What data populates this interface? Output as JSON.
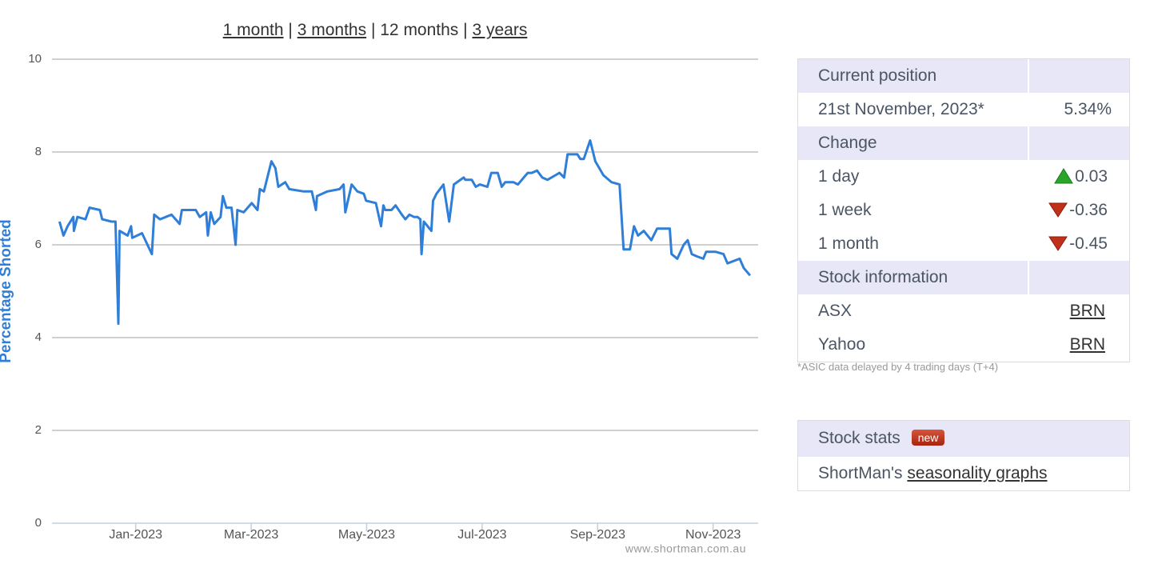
{
  "nav": {
    "links": [
      "1 month",
      "3 months",
      "12 months",
      "3 years"
    ],
    "separator": "|"
  },
  "chart_data": {
    "type": "line",
    "ylabel": "Percentage Shorted",
    "credit": "www.shortman.com.au",
    "x": [
      -0.32,
      -0.25,
      -0.18,
      -0.08,
      -0.07,
      -0.01,
      0.13,
      0.2,
      0.38,
      0.42,
      0.58,
      0.65,
      0.7,
      0.72,
      0.86,
      0.92,
      0.94,
      1.11,
      1.28,
      1.32,
      1.42,
      1.62,
      1.76,
      1.8,
      2.04,
      2.11,
      2.22,
      2.25,
      2.3,
      2.36,
      2.47,
      2.51,
      2.57,
      2.66,
      2.73,
      2.76,
      2.87,
      3.01,
      3.11,
      3.15,
      3.22,
      3.35,
      3.42,
      3.47,
      3.59,
      3.66,
      3.91,
      4.05,
      4.12,
      4.14,
      4.32,
      4.53,
      4.6,
      4.63,
      4.74,
      4.84,
      4.95,
      4.99,
      5.16,
      5.25,
      5.29,
      5.32,
      5.43,
      5.5,
      5.61,
      5.67,
      5.74,
      5.82,
      5.88,
      5.93,
      5.95,
      5.99,
      6.12,
      6.15,
      6.21,
      6.33,
      6.43,
      6.51,
      6.68,
      6.71,
      6.82,
      6.89,
      6.96,
      7.09,
      7.16,
      7.27,
      7.34,
      7.4,
      7.54,
      7.62,
      7.72,
      7.79,
      7.86,
      7.95,
      8.04,
      8.13,
      8.27,
      8.34,
      8.42,
      8.48,
      8.65,
      8.7,
      8.76,
      8.87,
      8.96,
      9.1,
      9.24,
      9.38,
      9.45,
      9.56,
      9.63,
      9.7,
      9.8,
      9.93,
      10.03,
      10.14,
      10.25,
      10.28,
      10.38,
      10.49,
      10.56,
      10.63,
      10.72,
      10.83,
      10.88,
      11.04,
      11.18,
      11.25,
      11.46,
      11.53,
      11.64
    ],
    "series": [
      {
        "color": "#2f7ed8",
        "values": [
          6.5,
          6.2,
          6.4,
          6.6,
          6.3,
          6.6,
          6.55,
          6.8,
          6.75,
          6.55,
          6.5,
          6.5,
          4.3,
          6.3,
          6.2,
          6.4,
          6.15,
          6.25,
          5.8,
          6.65,
          6.55,
          6.65,
          6.45,
          6.75,
          6.75,
          6.6,
          6.7,
          6.2,
          6.7,
          6.45,
          6.6,
          7.05,
          6.8,
          6.8,
          6.0,
          6.75,
          6.7,
          6.9,
          6.75,
          7.2,
          7.15,
          7.8,
          7.65,
          7.25,
          7.35,
          7.2,
          7.15,
          7.15,
          6.75,
          7.05,
          7.15,
          7.2,
          7.3,
          6.7,
          7.3,
          7.15,
          7.1,
          6.95,
          6.9,
          6.4,
          6.85,
          6.75,
          6.75,
          6.85,
          6.65,
          6.55,
          6.65,
          6.6,
          6.6,
          6.55,
          5.8,
          6.5,
          6.3,
          6.95,
          7.1,
          7.3,
          6.5,
          7.3,
          7.45,
          7.4,
          7.4,
          7.25,
          7.3,
          7.25,
          7.55,
          7.55,
          7.25,
          7.35,
          7.35,
          7.3,
          7.45,
          7.55,
          7.55,
          7.6,
          7.45,
          7.4,
          7.5,
          7.55,
          7.45,
          7.95,
          7.95,
          7.85,
          7.85,
          8.25,
          7.8,
          7.5,
          7.35,
          7.3,
          5.9,
          5.9,
          6.4,
          6.2,
          6.3,
          6.1,
          6.35,
          6.35,
          6.35,
          5.8,
          5.7,
          6.0,
          6.1,
          5.8,
          5.75,
          5.7,
          5.85,
          5.85,
          5.8,
          5.6,
          5.7,
          5.5,
          5.34
        ]
      }
    ],
    "xlim": [
      -0.45,
      11.78
    ],
    "xticks": [
      {
        "value": 1,
        "label": "Jan-2023"
      },
      {
        "value": 3,
        "label": "Mar-2023"
      },
      {
        "value": 5,
        "label": "May-2023"
      },
      {
        "value": 7,
        "label": "Jul-2023"
      },
      {
        "value": 9,
        "label": "Sep-2023"
      },
      {
        "value": 11,
        "label": "Nov-2023"
      }
    ],
    "ylim": [
      0,
      10
    ],
    "yticks": [
      0,
      2,
      4,
      6,
      8,
      10
    ],
    "grid": true
  },
  "position_panel": {
    "rows": [
      [
        "Current position"
      ],
      [
        "21st November, 2023*",
        "5.34%"
      ],
      [
        "Change"
      ],
      [
        "1 day",
        "0.03"
      ],
      [
        "1 week",
        "-0.36"
      ],
      [
        "1 month",
        "-0.45"
      ],
      [
        "Stock information"
      ],
      [
        "ASX",
        "BRN"
      ],
      [
        "Yahoo",
        "BRN"
      ]
    ],
    "footnote": "*ASIC data delayed by 4 trading days (T+4)"
  },
  "stats_panel": {
    "title": "Stock stats",
    "badge": "new",
    "text": "ShortMan's",
    "link": "seasonality graphs"
  }
}
